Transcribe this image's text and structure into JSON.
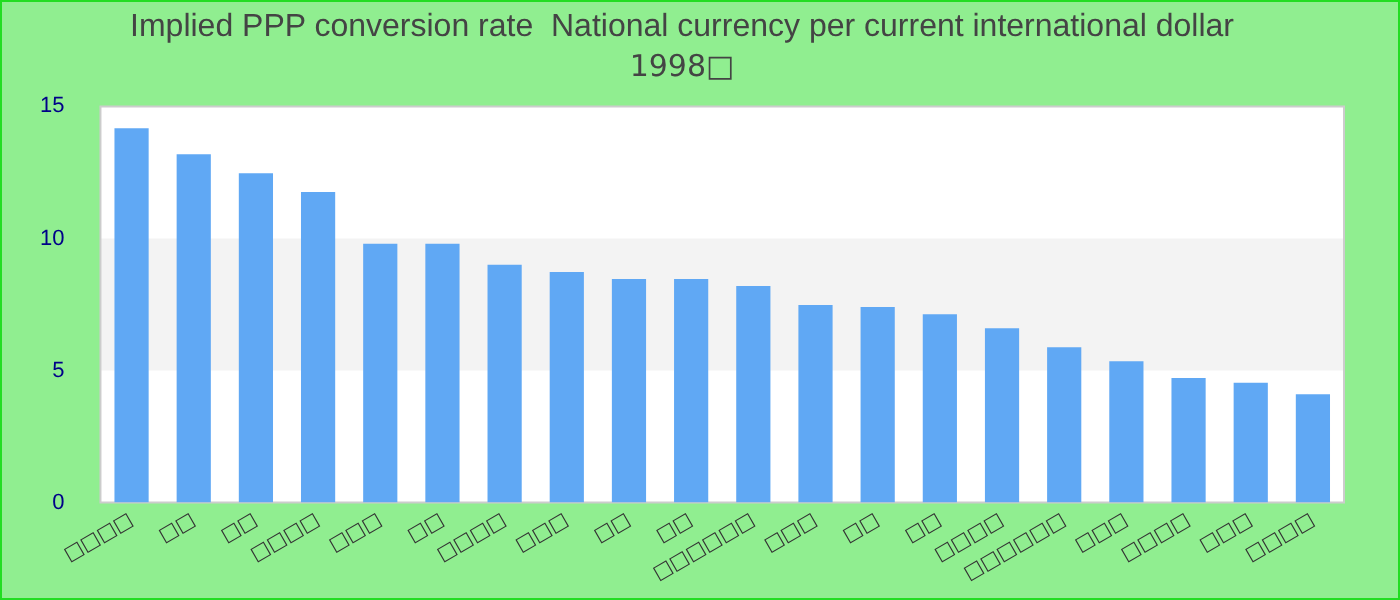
{
  "chart_data": {
    "type": "bar",
    "title": "Implied PPP conversion rate  National currency per current international dollar",
    "subtitle": "1998□",
    "categories": [
      "□□□□",
      "□□",
      "□□",
      "□□□□",
      "□□□",
      "□□",
      "□□□□",
      "□□□",
      "□□",
      "□□",
      "□□□□□□",
      "□□□",
      "□□",
      "□□",
      "□□□□",
      "□□□□□□",
      "□□□",
      "□□□□",
      "□□□",
      "□□□□"
    ],
    "values": [
      14.17,
      13.19,
      12.47,
      11.76,
      9.8,
      9.8,
      9.0,
      8.73,
      8.46,
      8.46,
      8.2,
      7.48,
      7.4,
      7.13,
      6.6,
      5.88,
      5.35,
      4.72,
      4.54,
      4.1
    ],
    "color": "#60a8f4",
    "ylim": [
      0,
      15
    ],
    "yticks": [
      0,
      5,
      10,
      15
    ],
    "bands": [
      {
        "axis": "y",
        "from": 5,
        "to": 10,
        "color": "#f3f3f3"
      }
    ],
    "legend": false
  }
}
